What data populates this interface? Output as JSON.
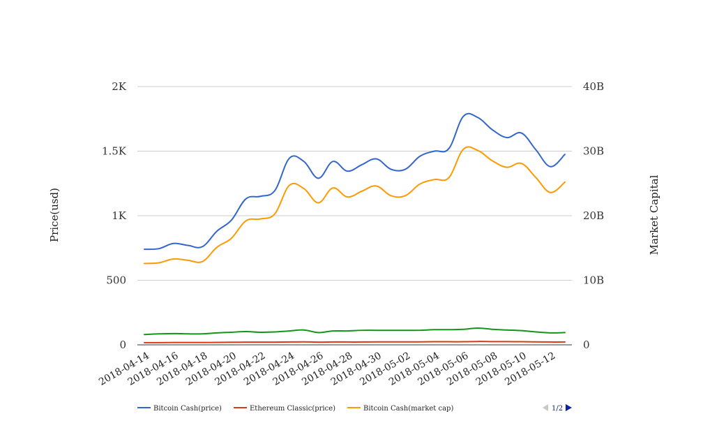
{
  "chart_data": {
    "type": "line",
    "x_ticks": [
      "2018-04-14",
      "2018-04-16",
      "2018-04-18",
      "2018-04-20",
      "2018-04-22",
      "2018-04-24",
      "2018-04-26",
      "2018-04-28",
      "2018-04-30",
      "2018-05-02",
      "2018-05-04",
      "2018-05-06",
      "2018-05-08",
      "2018-05-10",
      "2018-05-12"
    ],
    "x": [
      "2018-04-14",
      "2018-04-15",
      "2018-04-16",
      "2018-04-17",
      "2018-04-18",
      "2018-04-19",
      "2018-04-20",
      "2018-04-21",
      "2018-04-22",
      "2018-04-23",
      "2018-04-24",
      "2018-04-25",
      "2018-04-26",
      "2018-04-27",
      "2018-04-28",
      "2018-04-29",
      "2018-04-30",
      "2018-05-01",
      "2018-05-02",
      "2018-05-03",
      "2018-05-04",
      "2018-05-05",
      "2018-05-06",
      "2018-05-07",
      "2018-05-08",
      "2018-05-09",
      "2018-05-10",
      "2018-05-11",
      "2018-05-12",
      "2018-05-13"
    ],
    "ylabel": "Price(usd)",
    "ylabel_right": "Market Capital",
    "y_left_ticks": [
      "0",
      "500",
      "1K",
      "1.5K",
      "2K"
    ],
    "y_right_ticks": [
      "0",
      "10B",
      "20B",
      "30B",
      "40B"
    ],
    "ylim": [
      0,
      2000
    ],
    "ylim_right": [
      0,
      40000000000
    ],
    "series": [
      {
        "name": "Bitcoin Cash(price)",
        "axis": "left",
        "color": "#3366cc",
        "values": [
          740,
          745,
          785,
          770,
          760,
          880,
          965,
          1130,
          1150,
          1195,
          1445,
          1420,
          1290,
          1420,
          1345,
          1395,
          1440,
          1360,
          1360,
          1460,
          1500,
          1520,
          1770,
          1760,
          1665,
          1605,
          1640,
          1510,
          1380,
          1475
        ]
      },
      {
        "name": "Ethereum Classic(price)",
        "axis": "left",
        "color": "#dc3912",
        "values": [
          17,
          17,
          18,
          18,
          18,
          19,
          20,
          21,
          21,
          21,
          22,
          23,
          21,
          22,
          22,
          22,
          23,
          23,
          23,
          23,
          24,
          24,
          24,
          26,
          25,
          25,
          24,
          23,
          22,
          22
        ]
      },
      {
        "name": "Bitcoin Cash(market cap)",
        "axis": "right",
        "color": "#ff9900",
        "values": [
          12600000000,
          12700000000,
          13300000000,
          13100000000,
          12900000000,
          15100000000,
          16500000000,
          19200000000,
          19500000000,
          20300000000,
          24700000000,
          24200000000,
          22000000000,
          24300000000,
          22900000000,
          23800000000,
          24600000000,
          23100000000,
          23100000000,
          24900000000,
          25600000000,
          25900000000,
          30300000000,
          30100000000,
          28500000000,
          27500000000,
          28100000000,
          25900000000,
          23600000000,
          25200000000
        ]
      },
      {
        "name": "",
        "axis": "right",
        "color": "#109618",
        "values": [
          1600000000,
          1700000000,
          1750000000,
          1700000000,
          1700000000,
          1850000000,
          1950000000,
          2050000000,
          1950000000,
          2000000000,
          2150000000,
          2300000000,
          1900000000,
          2150000000,
          2150000000,
          2250000000,
          2250000000,
          2250000000,
          2250000000,
          2250000000,
          2350000000,
          2350000000,
          2400000000,
          2600000000,
          2400000000,
          2300000000,
          2200000000,
          2000000000,
          1850000000,
          1900000000
        ]
      }
    ],
    "legend": {
      "position": "bottom",
      "page_indicator": "1/2"
    },
    "grid": true
  }
}
